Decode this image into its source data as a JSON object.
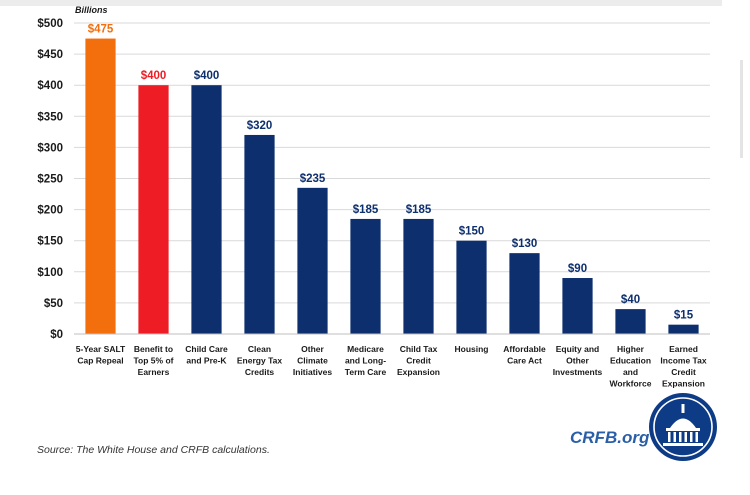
{
  "chart_data": {
    "type": "bar",
    "unit_label": "Billions",
    "categories": [
      [
        "5-Year SALT",
        "Cap Repeal"
      ],
      [
        "Benefit to",
        "Top 5% of",
        "Earners"
      ],
      [
        "Child Care",
        "and Pre-K"
      ],
      [
        "Clean",
        "Energy Tax",
        "Credits"
      ],
      [
        "Other",
        "Climate",
        "Initiatives"
      ],
      [
        "Medicare",
        "and Long-",
        "Term Care"
      ],
      [
        "Child Tax",
        "Credit",
        "Expansion"
      ],
      [
        "Housing"
      ],
      [
        "Affordable",
        "Care Act"
      ],
      [
        "Equity and",
        "Other",
        "Investments"
      ],
      [
        "Higher",
        "Education",
        "and",
        "Workforce"
      ],
      [
        "Earned",
        "Income Tax",
        "Credit",
        "Expansion"
      ]
    ],
    "values": [
      475,
      400,
      400,
      320,
      235,
      185,
      185,
      150,
      130,
      90,
      40,
      15
    ],
    "value_labels": [
      "$475",
      "$400",
      "$400",
      "$320",
      "$235",
      "$185",
      "$185",
      "$150",
      "$130",
      "$90",
      "$40",
      "$15"
    ],
    "bar_colors": [
      "#f36f0e",
      "#ee1c24",
      "#0d2f6e",
      "#0d2f6e",
      "#0d2f6e",
      "#0d2f6e",
      "#0d2f6e",
      "#0d2f6e",
      "#0d2f6e",
      "#0d2f6e",
      "#0d2f6e",
      "#0d2f6e"
    ],
    "label_colors": [
      "#f36f0e",
      "#ee1c24",
      "#0d2f6e",
      "#0d2f6e",
      "#0d2f6e",
      "#0d2f6e",
      "#0d2f6e",
      "#0d2f6e",
      "#0d2f6e",
      "#0d2f6e",
      "#0d2f6e",
      "#0d2f6e"
    ],
    "ylim": [
      0,
      500
    ],
    "yticks": [
      0,
      50,
      100,
      150,
      200,
      250,
      300,
      350,
      400,
      450,
      500
    ],
    "ytick_labels": [
      "$0",
      "$50",
      "$100",
      "$150",
      "$200",
      "$250",
      "$300",
      "$350",
      "$400",
      "$450",
      "$500"
    ],
    "grid": true
  },
  "footer": {
    "source": "Source: The White House and CRFB calculations.",
    "brand": "CRFB.org"
  }
}
